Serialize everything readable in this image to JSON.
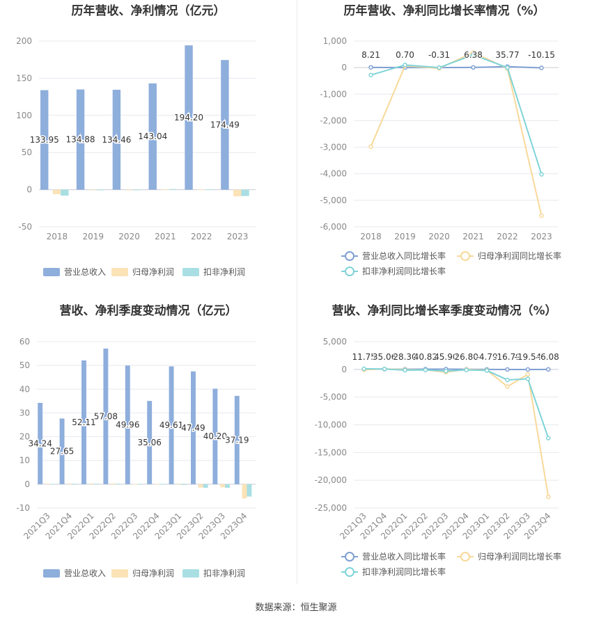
{
  "colors": {
    "revenue": "#8eaedc",
    "net_profit": "#fbe3b7",
    "deducted_profit": "#a9dfe3",
    "revenue_line": "#7f9fd2",
    "net_profit_line": "#f8d99a",
    "deducted_profit_line": "#7fd3d8",
    "axis_text": "#888888",
    "grid": "#e6e8ee",
    "title": "#333333"
  },
  "source_text": "数据来源：恒生聚源",
  "chart_data": [
    {
      "type": "bar",
      "title": "历年营收、净利情况（亿元）",
      "categories": [
        "2018",
        "2019",
        "2020",
        "2021",
        "2022",
        "2023"
      ],
      "ylim": [
        -50,
        200
      ],
      "yticks": [
        -50,
        0,
        50,
        100,
        150,
        200
      ],
      "series": [
        {
          "name": "营业总收入",
          "values": [
            133.95,
            134.88,
            134.46,
            143.04,
            194.2,
            174.49
          ],
          "labels": [
            "133.95",
            "134.88",
            "134.46",
            "143.04",
            "194.20",
            "174.49"
          ]
        },
        {
          "name": "归母净利润",
          "values": [
            -6,
            -0.5,
            -0.5,
            0.3,
            0.3,
            -9
          ]
        },
        {
          "name": "扣非净利润",
          "values": [
            -8,
            -0.8,
            -0.5,
            0.8,
            0.3,
            -8.5
          ]
        }
      ],
      "legend": "bottom",
      "grid": true
    },
    {
      "type": "line",
      "title": "历年营收、净利同比增长率情况（%）",
      "categories": [
        "2018",
        "2019",
        "2020",
        "2021",
        "2022",
        "2023"
      ],
      "ylim": [
        -6000,
        1000
      ],
      "yticks": [
        -6000,
        -5000,
        -4000,
        -3000,
        -2000,
        -1000,
        0,
        1000
      ],
      "ytick_labels": [
        "-6,000",
        "-5,000",
        "-4,000",
        "-3,000",
        "-2,000",
        "-1,000",
        "0",
        "1,000"
      ],
      "series": [
        {
          "name": "营业总收入同比增长率",
          "values": [
            8.21,
            0.7,
            -0.31,
            6.38,
            35.77,
            -10.15
          ],
          "labels": [
            "8.21",
            "0.70",
            "-0.31",
            "6.38",
            "35.77",
            "-10.15"
          ]
        },
        {
          "name": "归母净利润同比增长率",
          "values": [
            -2980,
            70,
            -30,
            570,
            -30,
            -5580
          ]
        },
        {
          "name": "扣非净利润同比增长率",
          "values": [
            -280,
            100,
            0,
            480,
            0,
            -4020
          ]
        }
      ],
      "legend": "bottom",
      "grid": true
    },
    {
      "type": "bar",
      "title": "营收、净利季度变动情况（亿元）",
      "categories": [
        "2021Q3",
        "2021Q4",
        "2022Q1",
        "2022Q2",
        "2022Q3",
        "2022Q4",
        "2023Q1",
        "2023Q2",
        "2023Q3",
        "2023Q4"
      ],
      "ylim": [
        -10,
        60
      ],
      "yticks": [
        -10,
        0,
        10,
        20,
        30,
        40,
        50,
        60
      ],
      "series": [
        {
          "name": "营业总收入",
          "values": [
            34.24,
            27.65,
            52.11,
            57.08,
            49.96,
            35.06,
            49.61,
            47.49,
            40.2,
            37.19
          ],
          "labels": [
            "34.24",
            "27.65",
            "52.11",
            "57.08",
            "49.96",
            "35.06",
            "49.61",
            "47.49",
            "40.20",
            "37.19"
          ]
        },
        {
          "name": "归母净利润",
          "values": [
            0.2,
            0.3,
            0.3,
            0.3,
            0.1,
            0.1,
            -0.2,
            -1.4,
            -1.3,
            -6
          ]
        },
        {
          "name": "扣非净利润",
          "values": [
            0.1,
            0.2,
            0.2,
            0.2,
            0.1,
            0.1,
            -0.3,
            -1.5,
            -1.5,
            -5.2
          ]
        }
      ],
      "legend": "bottom",
      "grid": true
    },
    {
      "type": "line",
      "title": "营收、净利同比增长率季度变动情况（%）",
      "categories": [
        "2021Q3",
        "2021Q4",
        "2022Q1",
        "2022Q2",
        "2022Q3",
        "2022Q4",
        "2023Q1",
        "2023Q2",
        "2023Q3",
        "2023Q4"
      ],
      "ylim": [
        -25000,
        5000
      ],
      "yticks": [
        -25000,
        -20000,
        -15000,
        -10000,
        -5000,
        0,
        5000
      ],
      "ytick_labels": [
        "-25,000",
        "-20,000",
        "-15,000",
        "-10,000",
        "-5,000",
        "0",
        "5,000"
      ],
      "series": [
        {
          "name": "营业总收入同比增长率",
          "values": [
            11.75,
            35.06,
            28.3,
            40.82,
            45.9,
            26.8,
            -4.79,
            -16.79,
            -19.54,
            -6.08
          ],
          "labels": [
            "11.75",
            "35.06",
            "28.30",
            "40.82",
            "45.90",
            "26.80",
            "-4.79",
            "-16.79",
            "-19.54",
            "-6.08"
          ]
        },
        {
          "name": "归母净利润同比增长率",
          "values": [
            -80,
            100,
            -60,
            -100,
            -500,
            0,
            -150,
            -3100,
            -900,
            -23000
          ]
        },
        {
          "name": "扣非净利润同比增长率",
          "values": [
            100,
            80,
            -150,
            -100,
            -300,
            -100,
            -200,
            -1900,
            -1700,
            -12400
          ]
        }
      ],
      "legend": "bottom",
      "grid": true
    }
  ]
}
